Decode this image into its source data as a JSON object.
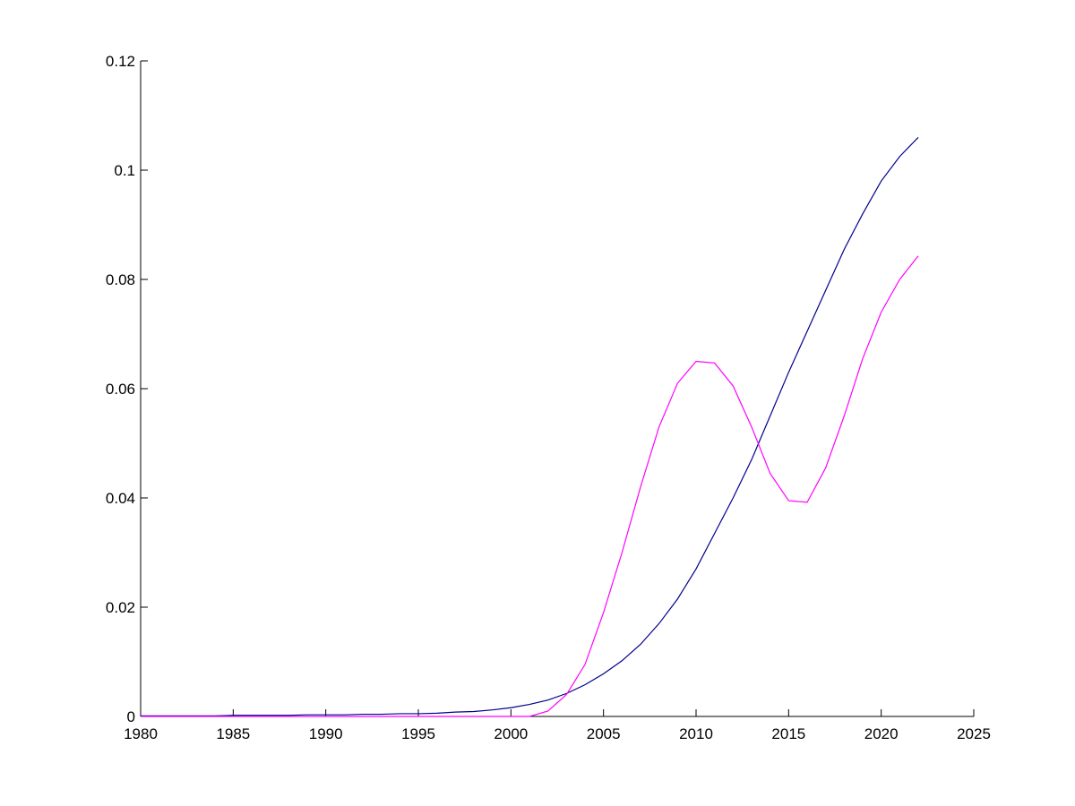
{
  "chart_data": {
    "type": "line",
    "x": [
      1980,
      1981,
      1982,
      1983,
      1984,
      1985,
      1986,
      1987,
      1988,
      1989,
      1990,
      1991,
      1992,
      1993,
      1994,
      1995,
      1996,
      1997,
      1998,
      1999,
      2000,
      2001,
      2002,
      2003,
      2004,
      2005,
      2006,
      2007,
      2008,
      2009,
      2010,
      2011,
      2012,
      2013,
      2014,
      2015,
      2016,
      2017,
      2018,
      2019,
      2020,
      2021,
      2022
    ],
    "series": [
      {
        "color": "#00008b",
        "values": [
          0.0001,
          0.0001,
          0.0001,
          0.0001,
          0.0001,
          0.0002,
          0.0002,
          0.0002,
          0.0002,
          0.0003,
          0.0003,
          0.0003,
          0.0004,
          0.0004,
          0.0005,
          0.0005,
          0.0006,
          0.0008,
          0.0009,
          0.0012,
          0.0016,
          0.0022,
          0.003,
          0.0042,
          0.0058,
          0.0078,
          0.0102,
          0.0132,
          0.017,
          0.0215,
          0.027,
          0.0335,
          0.04,
          0.047,
          0.055,
          0.063,
          0.0705,
          0.078,
          0.0855,
          0.092,
          0.098,
          0.1025,
          0.106
        ]
      },
      {
        "color": "#ff00ff",
        "values": [
          0,
          0,
          0,
          0,
          0,
          0,
          0,
          0,
          0,
          0,
          0,
          0,
          0,
          0,
          0,
          0,
          0,
          0,
          0,
          0,
          0,
          0,
          0.001,
          0.004,
          0.0095,
          0.019,
          0.03,
          0.042,
          0.053,
          0.061,
          0.065,
          0.0647,
          0.0605,
          0.053,
          0.0445,
          0.0395,
          0.0392,
          0.0455,
          0.055,
          0.0655,
          0.074,
          0.08,
          0.0843
        ]
      }
    ],
    "xlim": [
      1980,
      2025
    ],
    "xticks": [
      1980,
      1985,
      1990,
      1995,
      2000,
      2005,
      2010,
      2015,
      2020,
      2025
    ],
    "ylim": [
      0,
      0.12
    ],
    "yticks": [
      0,
      0.02,
      0.04,
      0.06,
      0.08,
      0.1,
      0.12
    ]
  }
}
